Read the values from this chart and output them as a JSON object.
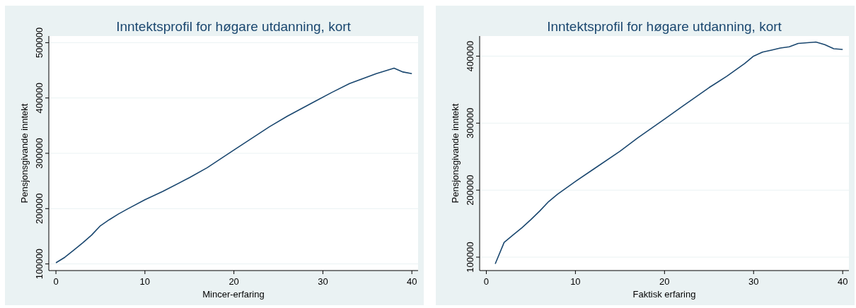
{
  "chart_data": [
    {
      "type": "line",
      "title": "Inntektsprofil for høgare utdanning, kort",
      "xlabel": "Mincer-erfaring",
      "ylabel": "Pensjonsgivande inntekt",
      "x": [
        0,
        1,
        2,
        3,
        4,
        5,
        6,
        7,
        8,
        10,
        12,
        15,
        17,
        20,
        22,
        24,
        26,
        29,
        31,
        33,
        36,
        38,
        39,
        40
      ],
      "series": [
        {
          "color": "#1a476f",
          "values": [
            102000,
            112000,
            125000,
            138000,
            152000,
            169000,
            180000,
            190000,
            199000,
            216000,
            231000,
            256000,
            274000,
            306000,
            327000,
            348000,
            367000,
            393000,
            410000,
            426000,
            444000,
            454000,
            447000,
            444000
          ]
        }
      ],
      "xlim": [
        -0.8,
        40.7
      ],
      "xticks": [
        0,
        10,
        20,
        30,
        40
      ],
      "ylim": [
        88000,
        512000
      ],
      "yticks": [
        100000,
        200000,
        300000,
        400000,
        500000
      ],
      "grid": "y"
    },
    {
      "type": "line",
      "title": "Inntektsprofil for høgare utdanning, kort",
      "xlabel": "Faktisk erfaring",
      "ylabel": "Pensjonsgivande inntekt",
      "x": [
        1,
        2,
        3,
        4,
        5,
        6,
        7,
        8,
        10,
        12,
        15,
        17,
        20,
        22,
        25,
        27,
        29,
        30,
        31,
        32,
        33,
        34,
        35,
        36,
        37,
        38,
        39,
        40
      ],
      "series": [
        {
          "color": "#1a476f",
          "values": [
            90000,
            122000,
            133000,
            144000,
            156000,
            169000,
            183000,
            194000,
            213000,
            231000,
            258000,
            278000,
            306000,
            325000,
            353000,
            370000,
            389000,
            400000,
            406000,
            409000,
            412000,
            414000,
            419000,
            420000,
            421000,
            417000,
            411000,
            410000
          ]
        }
      ],
      "xlim": [
        -0.75,
        40.7
      ],
      "xticks": [
        0,
        10,
        20,
        30,
        40
      ],
      "ylim": [
        80000,
        430000
      ],
      "yticks": [
        100000,
        200000,
        300000,
        400000
      ],
      "grid": "y"
    }
  ]
}
